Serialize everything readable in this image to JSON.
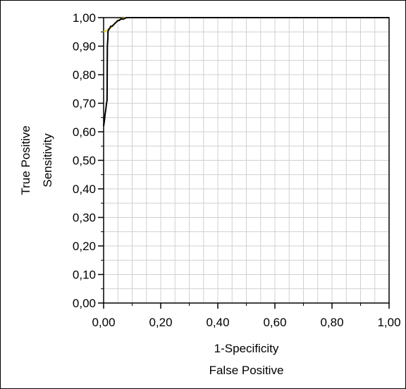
{
  "chart_data": {
    "type": "line",
    "title": "",
    "xlabel": [
      "1-Specificity",
      "False Positive"
    ],
    "ylabel": [
      "True Positive",
      "Sensitivity"
    ],
    "xlim": [
      0,
      1
    ],
    "ylim": [
      0,
      1
    ],
    "x_ticks": [
      "0,00",
      "0,20",
      "0,40",
      "0,60",
      "0,80",
      "1,00"
    ],
    "y_ticks": [
      "0,00",
      "0,10",
      "0,20",
      "0,30",
      "0,40",
      "0,50",
      "0,60",
      "0,70",
      "0,80",
      "0,90",
      "1,00"
    ],
    "grid": true,
    "series": [
      {
        "color": "#000000",
        "x": [
          0,
          0.003,
          0.005,
          0.008,
          0.01,
          0.012,
          0.013,
          0.015,
          0.015,
          0.018,
          0.02,
          0.025,
          0.03,
          0.035,
          0.04,
          0.045,
          0.05,
          0.055,
          0.06,
          0.07,
          0.08,
          0.09,
          1.0
        ],
        "y": [
          0.62,
          0.64,
          0.66,
          0.68,
          0.7,
          0.71,
          0.9,
          0.93,
          0.95,
          0.96,
          0.96,
          0.97,
          0.97,
          0.975,
          0.98,
          0.985,
          0.99,
          0.99,
          0.995,
          0.995,
          1.0,
          1.0,
          1.0
        ]
      },
      {
        "color": "#e8d040",
        "x": [
          0,
          0.01,
          0.02,
          0.03,
          0.04,
          0.05,
          0.06,
          0.08
        ],
        "y": [
          0.95,
          0.955,
          0.96,
          0.97,
          0.98,
          0.99,
          0.995,
          1.0
        ]
      }
    ]
  }
}
